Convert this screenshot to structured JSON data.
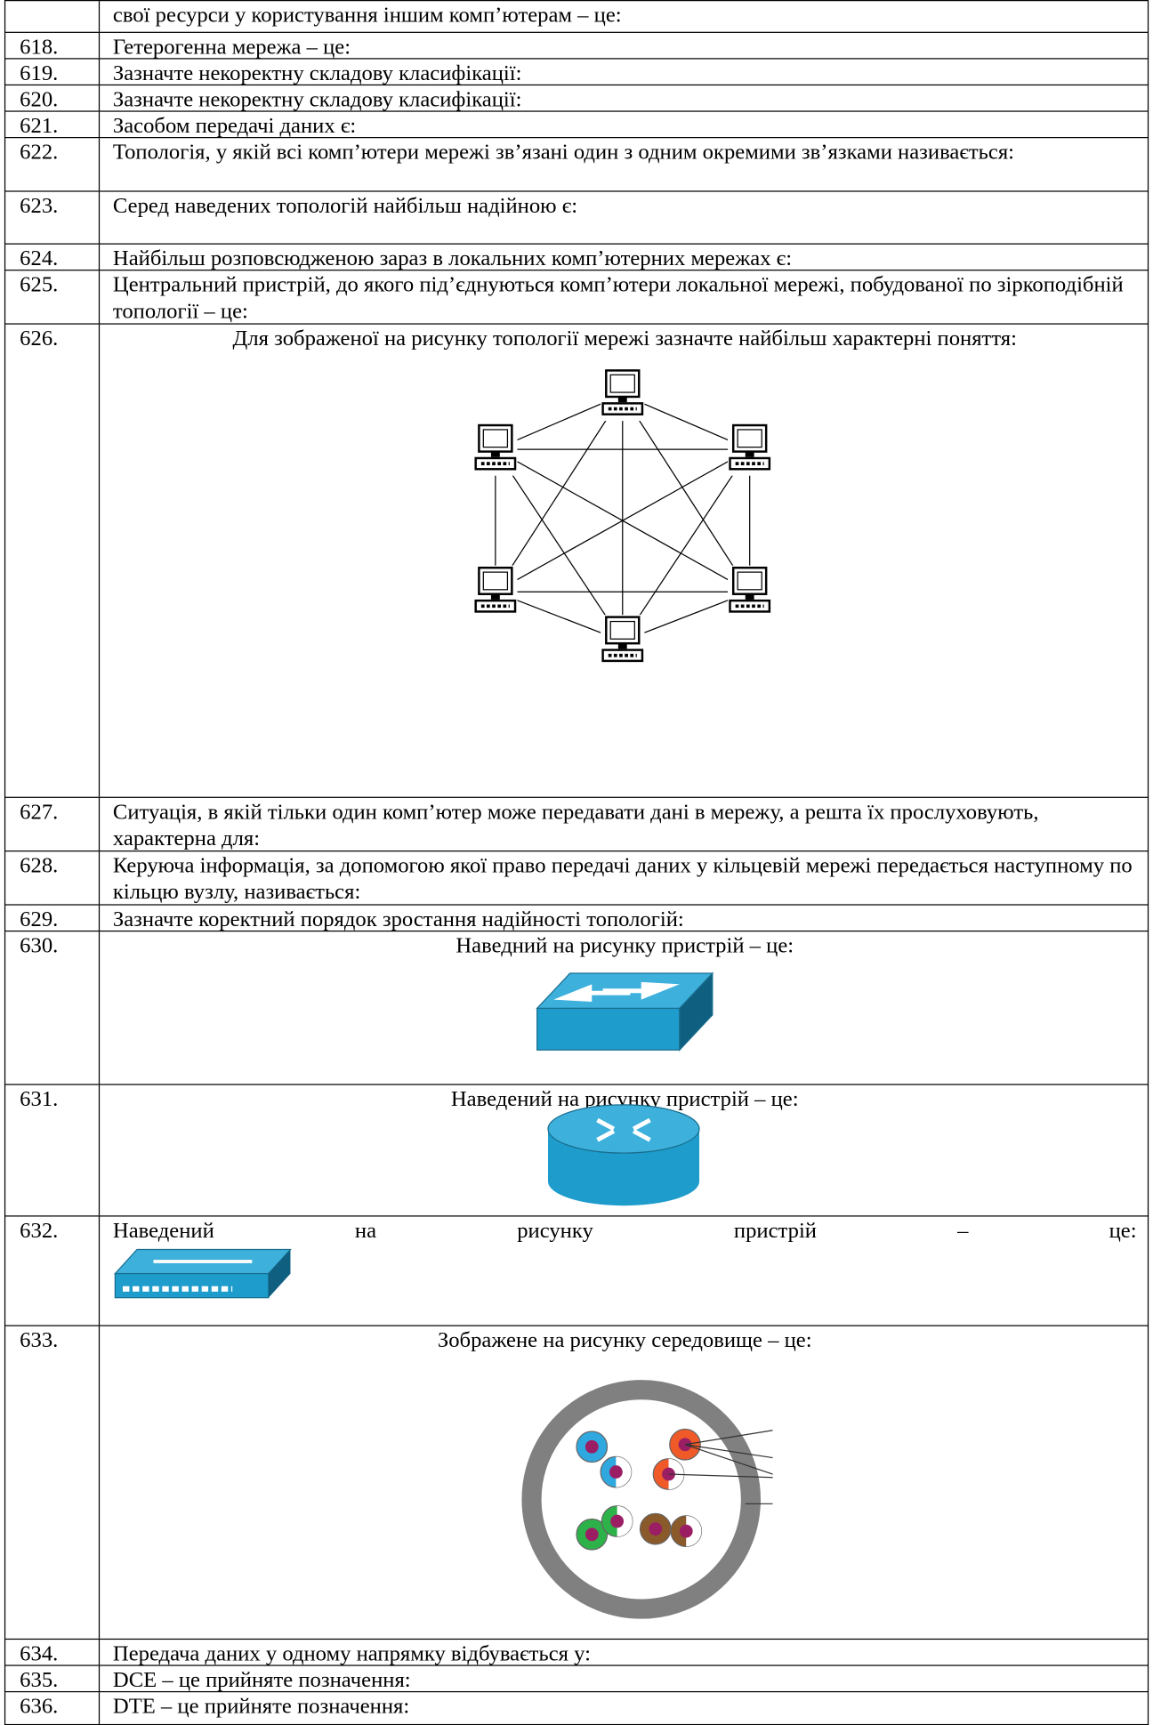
{
  "rows": [
    {
      "text": "свої ресурси у користування іншим комп’ютерам – це:"
    },
    {
      "number": "618.",
      "text": "Гетерогенна мережа – це:"
    },
    {
      "number": "619.",
      "text": "Зазначте некоректну складову класифікації:"
    },
    {
      "number": "620.",
      "text": "Зазначте некоректну складову класифікації:"
    },
    {
      "number": "621.",
      "text": "Засобом передачі даних є:"
    },
    {
      "number": "622.",
      "text": "Топологія, у якій всі комп’ютери мережі зв’язані один з одним окремими зв’язками називається:"
    },
    {
      "number": "623.",
      "text": "Серед наведених топологій найбільш надійною є:"
    },
    {
      "number": "624.",
      "text": "Найбільш розповсюдженою зараз в локальних комп’ютерних мережах є:"
    },
    {
      "number": "625.",
      "text": "Центральний пристрій, до якого під’єднуються комп’ютери локальної мережі, побудованої по зіркоподібній топології – це:"
    },
    {
      "number": "626.",
      "text": "Для зображеної на рисунку топології мережі зазначте найбільш характерні поняття:"
    },
    {
      "number": "627.",
      "text": "Ситуація, в якій тільки один комп’ютер може передавати дані в мережу, а решта їх прослуховують, характерна для:"
    },
    {
      "number": "628.",
      "text": "Керуюча інформація, за допомогою якої право передачі даних у кільцевій мережі передається наступному по кільцю вузлу, називається:"
    },
    {
      "number": "629.",
      "text": "Зазначте коректний порядок зростання надійності топологій:"
    },
    {
      "number": "630.",
      "text": "Наведний на рисунку пристрій – це:"
    },
    {
      "number": "631.",
      "text": "Наведений на рисунку пристрій – це:"
    },
    {
      "number": "632.",
      "text": "Наведений на рисунку пристрій – це:"
    },
    {
      "number": "633.",
      "text": "Зображене на рисунку середовище – це:"
    },
    {
      "number": "634.",
      "text": "Передача даних у одному напрямку відбувається у:"
    },
    {
      "number": "635.",
      "text": "DCE – це прийняте позначення:"
    },
    {
      "number": "636.",
      "text": "DTE – це прийняте позначення:"
    }
  ]
}
